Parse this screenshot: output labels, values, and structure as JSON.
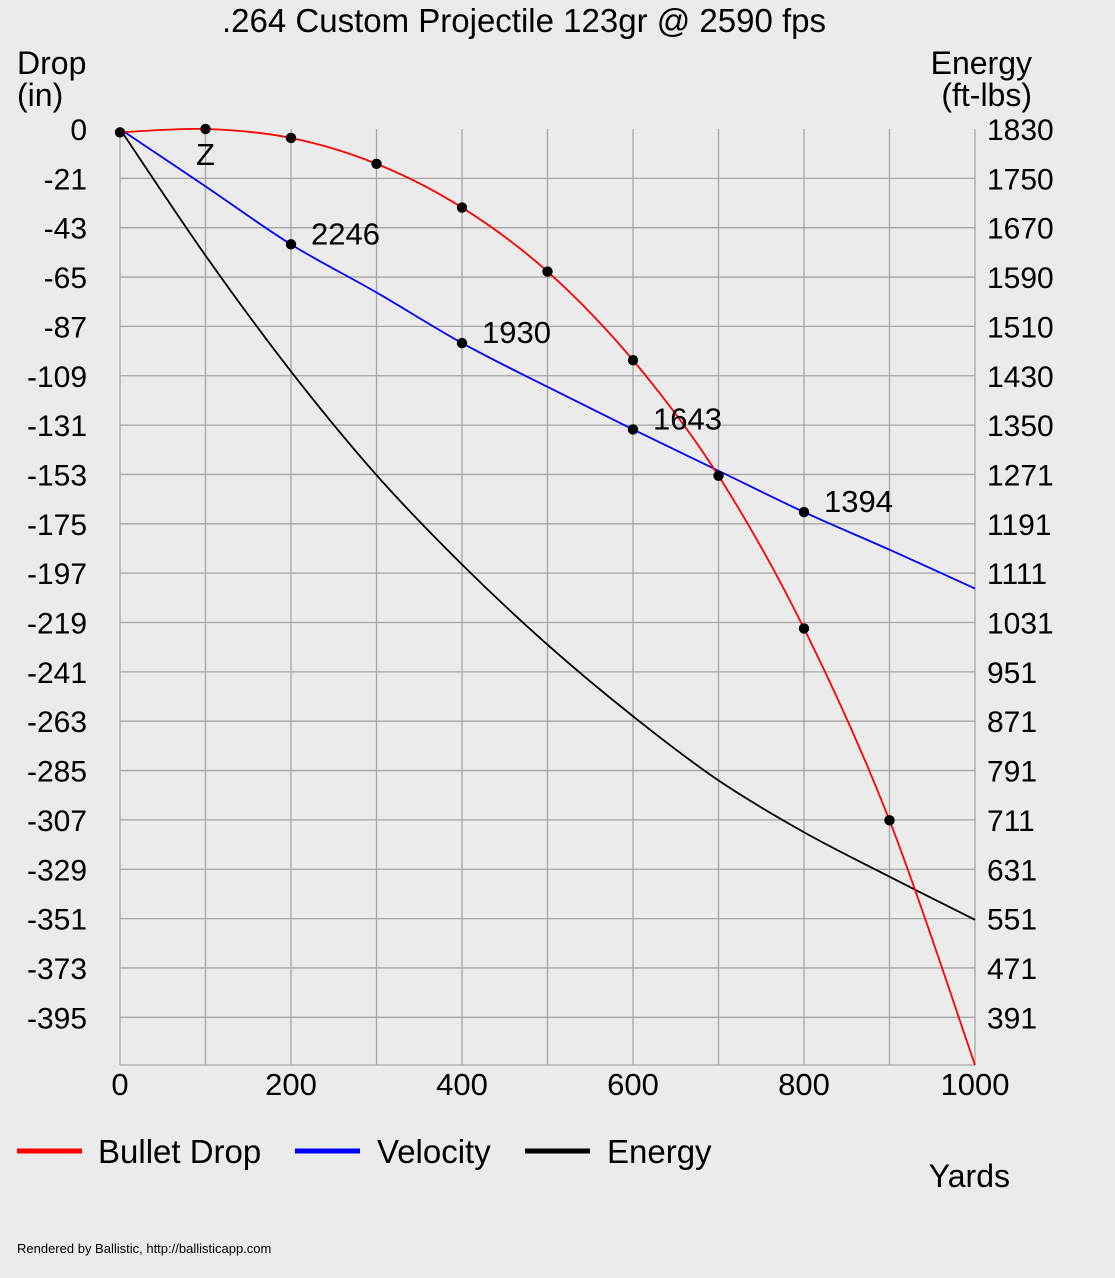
{
  "chart_data": {
    "type": "line",
    "title": ".264 Custom Projectile 123gr @ 2590 fps",
    "left_axis_label_line1": "Drop",
    "left_axis_label_line2": "(in)",
    "right_axis_label_line1": "Energy",
    "right_axis_label_line2": "(ft-lbs)",
    "xlabel": "Yards",
    "xlim": [
      0,
      1000
    ],
    "x_ticks": [
      "0",
      "200",
      "400",
      "600",
      "800",
      "1000"
    ],
    "x_grid": [
      0,
      100,
      200,
      300,
      400,
      500,
      600,
      700,
      800,
      900,
      1000
    ],
    "left_ylim": [
      -417,
      0
    ],
    "left_ticks": [
      0,
      -21,
      -43,
      -65,
      -87,
      -109,
      -131,
      -153,
      -175,
      -197,
      -219,
      -241,
      -263,
      -285,
      -307,
      -329,
      -351,
      -373,
      -395
    ],
    "right_ylim": [
      351,
      1830
    ],
    "right_ticks": [
      1830,
      1750,
      1670,
      1590,
      1510,
      1430,
      1350,
      1271,
      1191,
      1111,
      1031,
      951,
      871,
      791,
      711,
      631,
      551,
      471,
      391
    ],
    "grid": true,
    "legend_position": "bottom-left",
    "legend": [
      {
        "label": "Bullet Drop",
        "color": "#ff0000"
      },
      {
        "label": "Velocity",
        "color": "#0000ff"
      },
      {
        "label": "Energy",
        "color": "#000000"
      }
    ],
    "series": [
      {
        "name": "Bullet Drop",
        "color": "#ff0000",
        "axis": "left",
        "x": [
          0,
          100,
          200,
          300,
          400,
          500,
          600,
          700,
          800,
          900,
          1000
        ],
        "y": [
          -1.5,
          0,
          -4,
          -15.5,
          -35,
          -63.5,
          -103,
          -154.5,
          -222.5,
          -308,
          -417
        ],
        "markers_at": [
          0,
          100,
          200,
          300,
          400,
          500,
          600,
          700,
          800,
          900
        ]
      },
      {
        "name": "Velocity",
        "color": "#0000ff",
        "axis": "right",
        "x": [
          0,
          100,
          200,
          300,
          400,
          500,
          600,
          700,
          800,
          900,
          1000
        ],
        "y": [
          1830,
          1737,
          1643,
          1565,
          1483,
          1412,
          1343,
          1276,
          1209,
          1148,
          1085
        ],
        "markers_at": [
          200,
          400,
          600,
          800
        ],
        "labels": [
          {
            "x": 200,
            "text": "2246"
          },
          {
            "x": 400,
            "text": "1930"
          },
          {
            "x": 600,
            "text": "1643"
          },
          {
            "x": 800,
            "text": "1394"
          }
        ]
      },
      {
        "name": "Energy",
        "color": "#000000",
        "axis": "right",
        "x": [
          0,
          100,
          200,
          300,
          400,
          500,
          600,
          700,
          800,
          900,
          1000
        ],
        "y": [
          1830,
          1625,
          1437,
          1269,
          1124,
          994,
          878,
          774,
          690,
          618,
          548
        ]
      }
    ],
    "annotations": [
      {
        "text": "Z",
        "x": 100,
        "y": -4
      }
    ]
  },
  "footer": {
    "credit": "Rendered by Ballistic, http://ballisticapp.com"
  }
}
